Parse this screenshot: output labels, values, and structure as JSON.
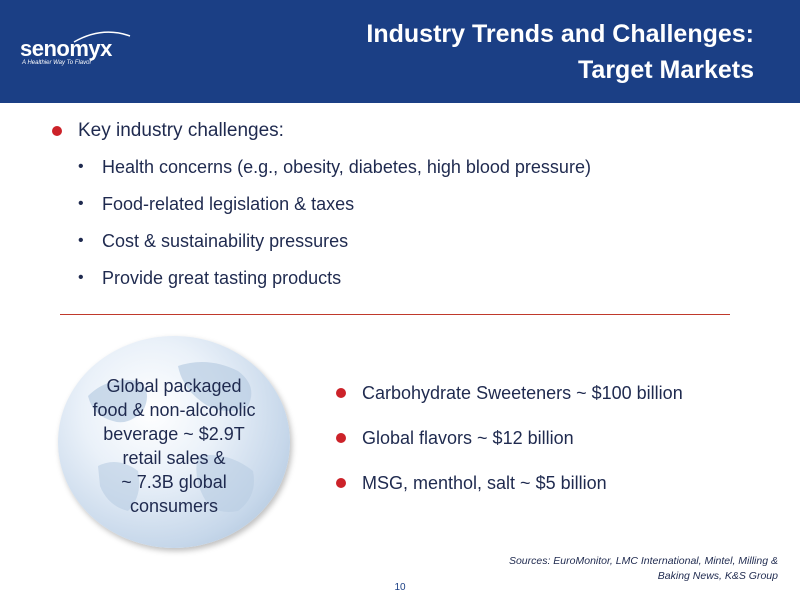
{
  "header": {
    "logo_text": "senomyx",
    "logo_tagline": "A Healthier Way To Flavor",
    "title_line1": "Industry Trends and Challenges:",
    "title_line2": "Target Markets",
    "colors": {
      "background": "#1b3f85",
      "text": "#ffffff"
    }
  },
  "challenges": {
    "heading": "Key industry challenges:",
    "items": [
      "Health concerns (e.g., obesity, diabetes, high blood pressure)",
      "Food-related legislation & taxes",
      "Cost & sustainability pressures",
      "Provide great tasting products"
    ]
  },
  "globe": {
    "text": "Global packaged\nfood & non-alcoholic\nbeverage ~ $2.9T\nretail  sales &    \n~ 7.3B global\nconsumers"
  },
  "markets": {
    "items": [
      "Carbohydrate Sweeteners ~ $100 billion",
      "Global flavors ~ $12 billion",
      "MSG, menthol, salt ~ $5 billion"
    ]
  },
  "footer": {
    "sources": "Sources:  EuroMonitor, LMC International, Mintel, Milling &\nBaking News, K&S Group",
    "page_number": "10"
  },
  "colors": {
    "bullet_red": "#cc2229",
    "text": "#1f2a4f",
    "divider": "#c0392b"
  }
}
